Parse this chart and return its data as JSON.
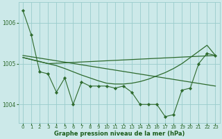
{
  "bg_color": "#cce9e9",
  "grid_color": "#99cccc",
  "line_color": "#2d6a2d",
  "marker_color": "#2d6a2d",
  "xlabel": "Graphe pression niveau de la mer (hPa)",
  "xlabel_color": "#1a5c1a",
  "ylim": [
    1003.55,
    1006.5
  ],
  "xlim": [
    -0.5,
    23.5
  ],
  "yticks": [
    1004,
    1005,
    1006
  ],
  "xticks": [
    0,
    1,
    2,
    3,
    4,
    5,
    6,
    7,
    8,
    9,
    10,
    11,
    12,
    13,
    14,
    15,
    16,
    17,
    18,
    19,
    20,
    21,
    22,
    23
  ],
  "series1_x": [
    0,
    1,
    2,
    3,
    4,
    5,
    6,
    7,
    8,
    9,
    10,
    11,
    12,
    13,
    14,
    15,
    16,
    17,
    18,
    19,
    20,
    21,
    22,
    23
  ],
  "series1_y": [
    1006.3,
    1005.7,
    1004.8,
    1004.75,
    1004.3,
    1004.65,
    1004.0,
    1004.55,
    1004.45,
    1004.45,
    1004.45,
    1004.4,
    1004.45,
    1004.3,
    1004.0,
    1004.0,
    1004.0,
    1003.7,
    1003.75,
    1004.35,
    1004.4,
    1005.0,
    1005.25,
    1005.2
  ],
  "series2_x": [
    0,
    1,
    2,
    3,
    23
  ],
  "series2_y": [
    1005.15,
    1005.1,
    1005.05,
    1005.0,
    1005.2
  ],
  "series3_x": [
    0,
    1,
    2,
    3,
    4,
    5,
    6,
    7,
    8,
    9,
    10,
    11,
    12,
    13,
    14,
    15,
    16,
    17,
    18,
    19,
    20,
    21,
    22,
    23
  ],
  "series3_y": [
    1005.15,
    1005.1,
    1005.05,
    1005.0,
    1004.95,
    1004.88,
    1004.8,
    1004.72,
    1004.65,
    1004.58,
    1004.52,
    1004.5,
    1004.5,
    1004.52,
    1004.56,
    1004.62,
    1004.7,
    1004.78,
    1004.88,
    1005.0,
    1005.15,
    1005.3,
    1005.45,
    1005.2
  ],
  "series4_x": [
    0,
    23
  ],
  "series4_y": [
    1005.2,
    1004.45
  ]
}
